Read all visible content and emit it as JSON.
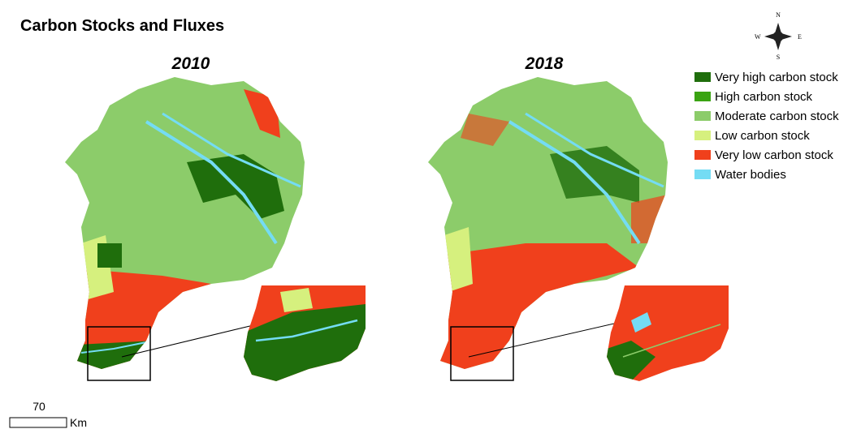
{
  "title": "Carbon Stocks and Fluxes",
  "compass": {
    "n": "N",
    "e": "E",
    "s": "S",
    "w": "W"
  },
  "maps": [
    {
      "label": "2010"
    },
    {
      "label": "2018"
    }
  ],
  "legend": [
    {
      "label": "Very high carbon stock",
      "color": "#1f6e0c"
    },
    {
      "label": "High carbon stock",
      "color": "#3aa312"
    },
    {
      "label": "Moderate carbon stock",
      "color": "#8ccc6a"
    },
    {
      "label": "Low carbon stock",
      "color": "#d6f07e"
    },
    {
      "label": "Very low carbon stock",
      "color": "#f0401c"
    },
    {
      "label": "Water bodies",
      "color": "#74dcf4"
    }
  ],
  "scale_bar": {
    "value": 70,
    "unit": "Km"
  }
}
